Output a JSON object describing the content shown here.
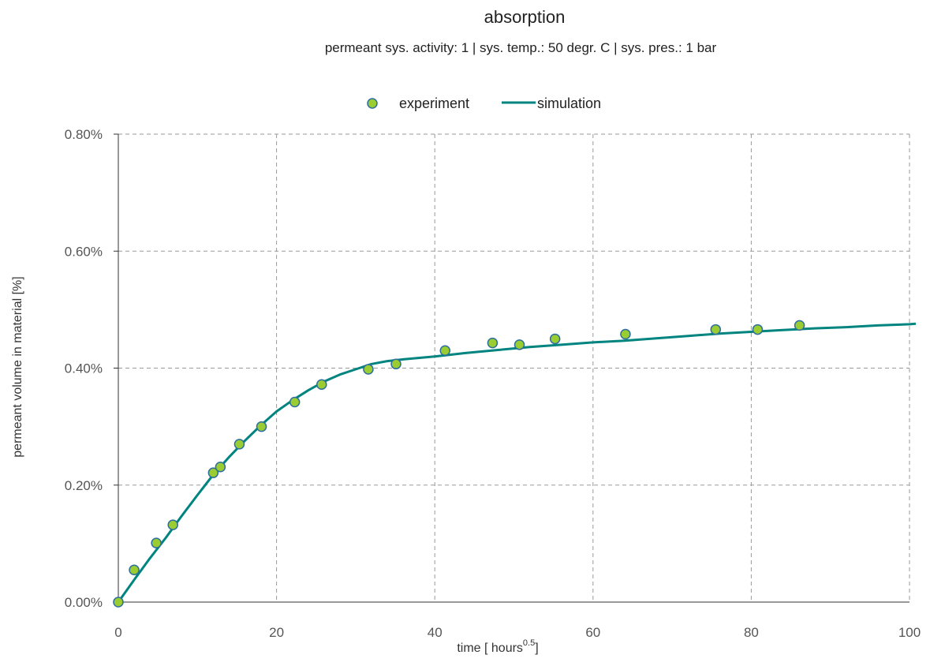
{
  "chart_data": {
    "type": "scatter",
    "title": "absorption",
    "subtitle": "permeant sys. activity: 1 | sys. temp.: 50 degr. C | sys. pres.: 1 bar",
    "xlabel_prefix": "time [ hours",
    "xlabel_sup": "0.5",
    "xlabel_suffix": "]",
    "ylabel": "permeant volume in material [%]",
    "xlim": [
      0,
      100
    ],
    "ylim": [
      0,
      0.8
    ],
    "x_ticks": [
      0,
      20,
      40,
      60,
      80,
      100
    ],
    "x_tick_labels": [
      "0",
      "20",
      "40",
      "60",
      "80",
      "100"
    ],
    "y_ticks": [
      0,
      0.2,
      0.4,
      0.6,
      0.8
    ],
    "y_tick_labels": [
      "0.00%",
      "0.20%",
      "0.40%",
      "0.60%",
      "0.80%"
    ],
    "grid": true,
    "legend_position": "top-center",
    "series": [
      {
        "name": "experiment",
        "kind": "scatter",
        "color": "#9acd32",
        "edge_color": "#2c6e9e",
        "x": [
          0,
          2,
          4.8,
          6.9,
          12,
          12.9,
          15.3,
          18.1,
          22.3,
          25.7,
          31.6,
          35.1,
          41.3,
          47.3,
          50.7,
          55.2,
          64.1,
          75.5,
          80.8,
          86.1
        ],
        "y": [
          0.0,
          0.055,
          0.101,
          0.132,
          0.221,
          0.231,
          0.27,
          0.3,
          0.342,
          0.372,
          0.398,
          0.407,
          0.43,
          0.443,
          0.44,
          0.45,
          0.458,
          0.466,
          0.466,
          0.473
        ]
      },
      {
        "name": "simulation",
        "kind": "line",
        "color": "#00847f",
        "x": [
          0,
          2,
          4,
          6,
          8,
          10,
          12,
          14,
          16,
          18,
          20,
          22,
          24,
          26,
          28,
          30,
          32,
          34,
          36,
          40,
          44,
          48,
          52,
          56,
          60,
          64,
          68,
          72,
          76,
          80,
          84,
          88,
          92,
          96,
          100,
          101
        ],
        "y": [
          0.0,
          0.038,
          0.075,
          0.11,
          0.147,
          0.183,
          0.218,
          0.248,
          0.276,
          0.302,
          0.326,
          0.345,
          0.362,
          0.377,
          0.389,
          0.398,
          0.407,
          0.412,
          0.415,
          0.42,
          0.426,
          0.431,
          0.436,
          0.44,
          0.444,
          0.447,
          0.451,
          0.455,
          0.459,
          0.462,
          0.465,
          0.468,
          0.47,
          0.473,
          0.475,
          0.476
        ]
      }
    ]
  }
}
